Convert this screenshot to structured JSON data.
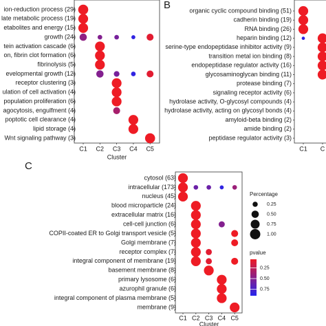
{
  "chart_data": [
    {
      "type": "dot",
      "x_label": "Cluster",
      "categories": [
        "ion-reduction process (29)",
        "late metabolic process (19)",
        "etabolites and energy (15)",
        "growth (24)",
        "tein activation cascade (6)",
        "on, fibrin clot formation (6)",
        "fibrinolysis (5)",
        "evelopmental growth (12)",
        "receptor clustering (3)",
        "ulation of cell activation (4)",
        "population proliferation (6)",
        "agocytosis, engulfment (4)",
        "poptotic cell clearance (4)",
        "lipid storage (4)",
        "Wnt signaling pathway (3)"
      ],
      "series": [
        {
          "name": "C1",
          "values": [
            0.95,
            0.9,
            0.9,
            0.5,
            null,
            null,
            null,
            null,
            null,
            null,
            null,
            null,
            null,
            null,
            null
          ],
          "pvalues": [
            0.05,
            0.05,
            0.05,
            0.45,
            null,
            null,
            null,
            null,
            null,
            null,
            null,
            null,
            null,
            null,
            null
          ]
        },
        {
          "name": "C2",
          "values": [
            null,
            null,
            null,
            0.2,
            0.9,
            0.9,
            0.9,
            0.5,
            null,
            null,
            null,
            null,
            null,
            null,
            null
          ],
          "pvalues": [
            null,
            null,
            null,
            0.5,
            0.05,
            0.05,
            0.05,
            0.5,
            null,
            null,
            null,
            null,
            null,
            null,
            null
          ]
        },
        {
          "name": "C3",
          "values": [
            null,
            null,
            null,
            0.2,
            null,
            null,
            null,
            0.3,
            0.9,
            0.9,
            0.9,
            0.45,
            null,
            null,
            null
          ],
          "pvalues": [
            null,
            null,
            null,
            0.55,
            null,
            null,
            null,
            0.55,
            0.05,
            0.05,
            0.05,
            0.35,
            null,
            null,
            null
          ]
        },
        {
          "name": "C4",
          "values": [
            null,
            null,
            null,
            0.15,
            null,
            null,
            null,
            0.2,
            null,
            null,
            null,
            null,
            0.9,
            0.9,
            null
          ],
          "pvalues": [
            null,
            null,
            null,
            0.85,
            null,
            null,
            null,
            0.85,
            null,
            null,
            null,
            null,
            0.05,
            0.05,
            null
          ]
        },
        {
          "name": "C5",
          "values": [
            null,
            null,
            null,
            0.45,
            null,
            null,
            null,
            0.45,
            null,
            null,
            null,
            null,
            null,
            null,
            0.95
          ],
          "pvalues": [
            null,
            null,
            null,
            0.1,
            null,
            null,
            null,
            0.1,
            null,
            null,
            null,
            null,
            null,
            null,
            0.05
          ]
        }
      ]
    },
    {
      "type": "dot",
      "panel": "B",
      "categories": [
        "organic cyclic compound binding (51)",
        "cadherin binding (19)",
        "RNA binding (26)",
        "heparin binding (12)",
        "serine-type endopeptidase inhibitor activity (9)",
        "transition metal ion binding (8)",
        "endopeptidase regulator activity (16)",
        "glycosaminoglycan binding (11)",
        "protease binding (7)",
        "signaling receptor activity (6)",
        "hydrolase activity, O-glycosyl compounds (4)",
        "hydrolase activity, acting on glycosyl bonds (4)",
        "amyloid-beta binding (2)",
        "amide binding (2)",
        "peptidase regulator activity (3)"
      ],
      "series": [
        {
          "name": "C1",
          "values": [
            0.9,
            0.9,
            0.9,
            0.1,
            null,
            null,
            null,
            null,
            null,
            null,
            null,
            null,
            null,
            null,
            null
          ],
          "pvalues": [
            0.05,
            0.05,
            0.05,
            0.85,
            null,
            null,
            null,
            null,
            null,
            null,
            null,
            null,
            null,
            null,
            null
          ]
        },
        {
          "name": "C",
          "values": [
            null,
            null,
            null,
            0.9,
            0.9,
            0.9,
            0.9,
            0.9,
            null,
            null,
            null,
            null,
            null,
            null,
            null
          ],
          "pvalues": [
            null,
            null,
            null,
            0.05,
            0.05,
            0.05,
            0.05,
            0.05,
            null,
            null,
            null,
            null,
            null,
            null,
            null
          ]
        }
      ]
    },
    {
      "type": "dot",
      "panel": "C",
      "x_label": "Cluster",
      "categories": [
        "cytosol (63)",
        "intracellular (173)",
        "nucleus (45)",
        "blood microparticle (24)",
        "extracellular matrix (16)",
        "cell-cell junction (6)",
        "COPII-coated ER to Golgi transport vesicle (5)",
        "Golgi membrane (7)",
        "receptor complex (7)",
        "integral component of membrane (19)",
        "basement membrane (8)",
        "primary lysosome (6)",
        "azurophil granule (6)",
        "integral component of plasma membrane (5)",
        "membrane (9)"
      ],
      "series": [
        {
          "name": "C1",
          "values": [
            0.9,
            0.9,
            0.9,
            null,
            null,
            null,
            null,
            null,
            null,
            null,
            null,
            null,
            null,
            null,
            null
          ],
          "pvalues": [
            0.05,
            0.05,
            0.05,
            null,
            null,
            null,
            null,
            null,
            null,
            null,
            null,
            null,
            null,
            null,
            null
          ]
        },
        {
          "name": "C2",
          "values": [
            null,
            0.2,
            null,
            0.9,
            0.9,
            0.9,
            0.9,
            0.9,
            0.9,
            0.9,
            null,
            null,
            null,
            null,
            null
          ],
          "pvalues": [
            null,
            0.6,
            null,
            0.05,
            0.05,
            0.05,
            0.05,
            0.05,
            0.05,
            0.05,
            null,
            null,
            null,
            null,
            null
          ]
        },
        {
          "name": "C3",
          "values": [
            null,
            0.2,
            null,
            null,
            null,
            null,
            null,
            null,
            0.35,
            0.35,
            0.9,
            null,
            null,
            null,
            null
          ],
          "pvalues": [
            null,
            0.6,
            null,
            null,
            null,
            null,
            null,
            null,
            0.1,
            0.1,
            0.05,
            null,
            null,
            null,
            null
          ]
        },
        {
          "name": "C4",
          "values": [
            null,
            0.15,
            null,
            null,
            null,
            0.35,
            null,
            null,
            null,
            null,
            null,
            0.9,
            0.9,
            0.9,
            null
          ],
          "pvalues": [
            null,
            0.85,
            null,
            null,
            null,
            0.5,
            null,
            null,
            null,
            null,
            null,
            0.05,
            0.05,
            0.05,
            null
          ]
        },
        {
          "name": "C5",
          "values": [
            null,
            0.2,
            null,
            null,
            null,
            null,
            0.45,
            0.45,
            null,
            0.45,
            null,
            null,
            null,
            null,
            0.9
          ],
          "pvalues": [
            null,
            0.4,
            null,
            null,
            null,
            null,
            0.05,
            0.05,
            null,
            0.05,
            null,
            null,
            null,
            null,
            0.05
          ]
        }
      ],
      "size_legend": {
        "title": "Percentage",
        "ticks": [
          0.25,
          {
            "value": 0.5,
            "label": "0.50"
          },
          0.75,
          {
            "value": 1,
            "label": "1.00"
          }
        ]
      },
      "color_legend": {
        "title": "pvalue",
        "lim": [
          0.05,
          0.9
        ],
        "ticks": [
          0.25,
          {
            "value": 0.5,
            "label": "0.50"
          },
          0.75
        ],
        "colors": [
          "#ee1c25",
          "#2424ee"
        ]
      }
    }
  ]
}
